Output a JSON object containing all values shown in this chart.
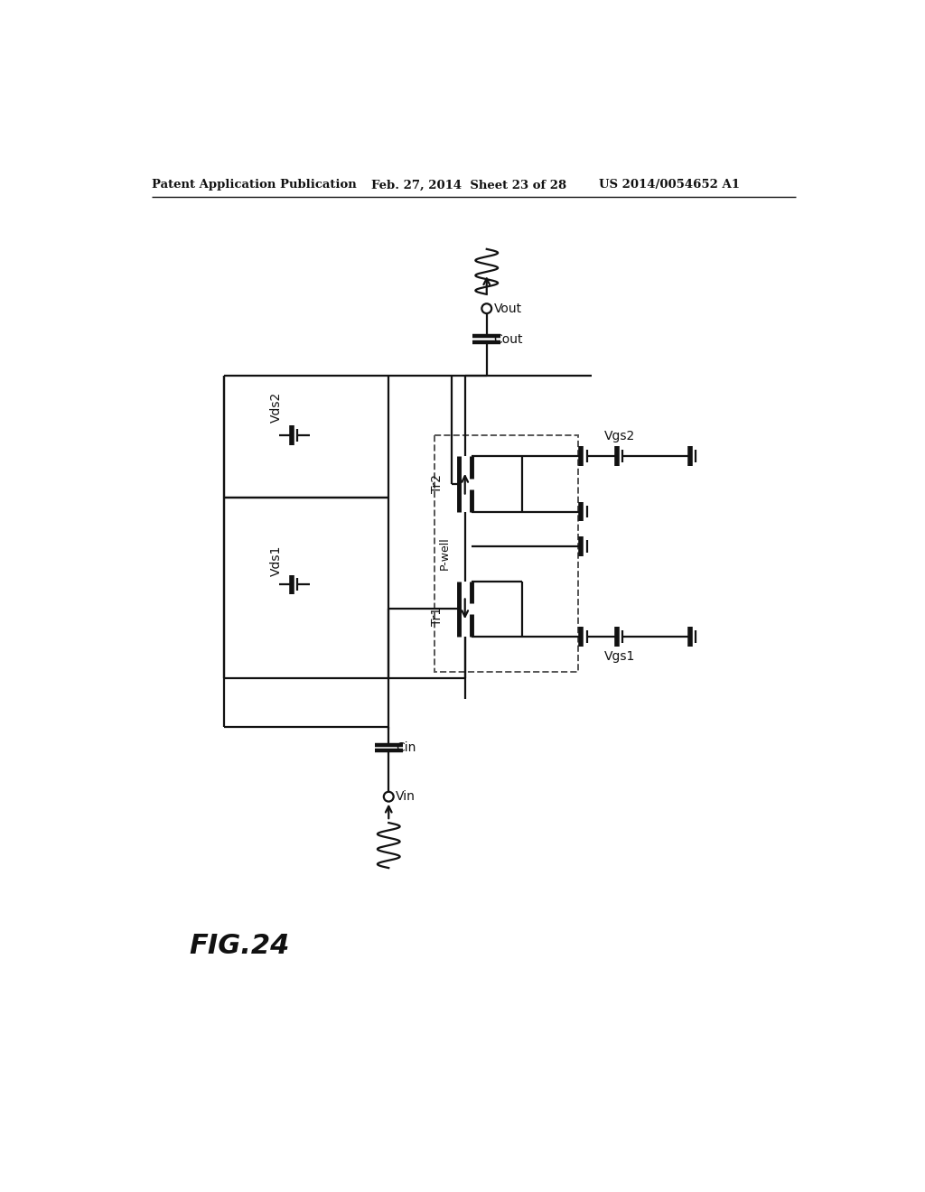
{
  "bg": "#ffffff",
  "lc": "#111111",
  "header_left": "Patent Application Publication",
  "header_mid": "Feb. 27, 2014  Sheet 23 of 28",
  "header_right": "US 2014/0054652 A1",
  "fig_label": "FIG.24"
}
